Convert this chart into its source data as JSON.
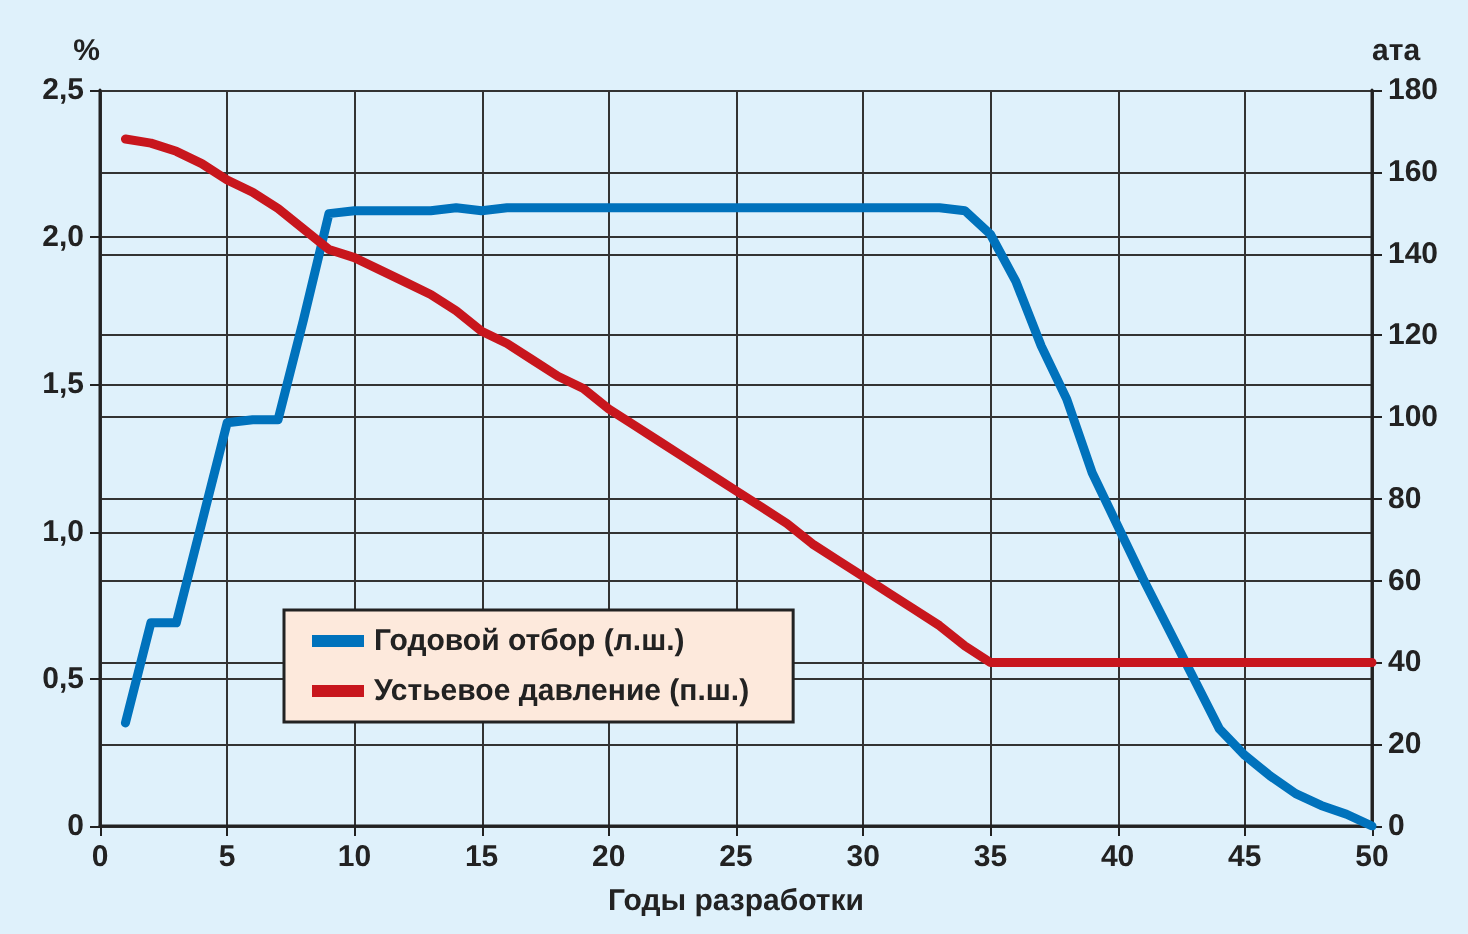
{
  "chart_data": {
    "type": "line",
    "xlabel": "Годы разработки",
    "ylabel": "%",
    "y2label": "ата",
    "x": [
      1,
      2,
      3,
      4,
      5,
      6,
      7,
      8,
      9,
      10,
      11,
      12,
      13,
      14,
      15,
      16,
      17,
      18,
      19,
      20,
      21,
      22,
      23,
      24,
      25,
      26,
      27,
      28,
      29,
      30,
      31,
      32,
      33,
      34,
      35,
      36,
      37,
      38,
      39,
      40,
      41,
      42,
      43,
      44,
      45,
      46,
      47,
      48,
      49,
      50
    ],
    "series": [
      {
        "name": "Годовой отбор (л.ш.)",
        "color": "#0072bc",
        "values": [
          0.35,
          0.69,
          0.69,
          1.03,
          1.37,
          1.38,
          1.38,
          1.72,
          2.08,
          2.09,
          2.09,
          2.09,
          2.09,
          2.1,
          2.09,
          2.1,
          2.1,
          2.1,
          2.1,
          2.1,
          2.1,
          2.1,
          2.1,
          2.1,
          2.1,
          2.1,
          2.1,
          2.1,
          2.1,
          2.1,
          2.1,
          2.1,
          2.1,
          2.09,
          2.01,
          1.85,
          1.63,
          1.45,
          1.2,
          1.02,
          0.84,
          0.67,
          0.5,
          0.33,
          0.24,
          0.17,
          0.11,
          0.07,
          0.04,
          0
        ]
      },
      {
        "name": "Устьевое давление (п.ш.)",
        "color": "#c8161d",
        "axis": "y2",
        "values": [
          168,
          167,
          165,
          162,
          158,
          155,
          151,
          146,
          141,
          139,
          136,
          133,
          130,
          126,
          121,
          118,
          114,
          110,
          107,
          102,
          98,
          94,
          90,
          86,
          82,
          78,
          74,
          69,
          65,
          61,
          57,
          53,
          49,
          44,
          40,
          40,
          40,
          40,
          40,
          40,
          40,
          40,
          40,
          40,
          40,
          40,
          40,
          40,
          40,
          40
        ]
      }
    ],
    "xlim": [
      0,
      50
    ],
    "xticks": [
      0,
      5,
      10,
      15,
      20,
      25,
      30,
      35,
      40,
      45,
      50
    ],
    "ylim": [
      0,
      2.5
    ],
    "yticks": [
      0,
      {
        "value": 0.5,
        "label": "0,5"
      },
      {
        "value": 1,
        "label": "1,0"
      },
      {
        "value": 1.5,
        "label": "1,5"
      },
      {
        "value": 2,
        "label": "2,0"
      },
      {
        "value": 2.5,
        "label": "2,5"
      }
    ],
    "y2lim": [
      0,
      180
    ],
    "y2ticks": [
      0,
      20,
      40,
      60,
      80,
      100,
      120,
      140,
      160,
      180
    ],
    "grid": true,
    "legend": "bottom left",
    "marker": "none",
    "line_style": "solid"
  }
}
